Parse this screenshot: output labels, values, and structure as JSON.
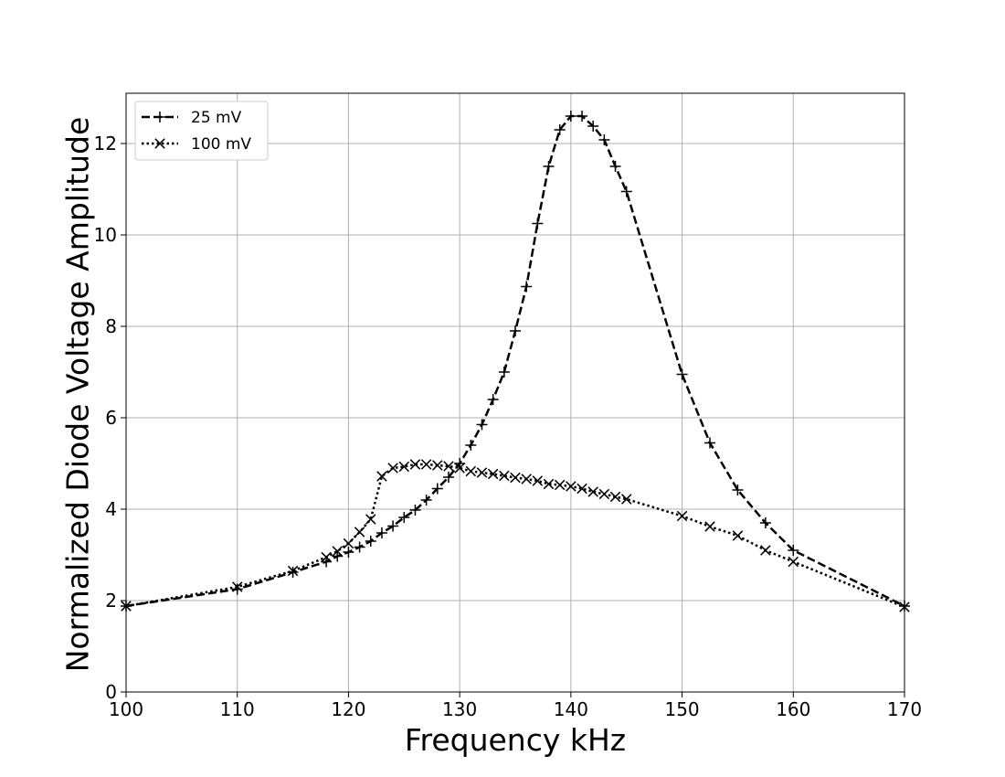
{
  "chart_data": {
    "type": "line",
    "title": "",
    "xlabel": "Frequency kHz",
    "ylabel": "Normalized Diode Voltage Amplitude",
    "xlim": [
      100,
      170
    ],
    "ylim": [
      0,
      13.1
    ],
    "xticks": [
      100,
      110,
      120,
      130,
      140,
      150,
      160,
      170
    ],
    "yticks": [
      0,
      2,
      4,
      6,
      8,
      10,
      12
    ],
    "grid": true,
    "legend_position": "upper-left",
    "series": [
      {
        "name": "25 mV",
        "line_style": "dashed",
        "marker": "plus",
        "color": "#000000",
        "x": [
          100,
          110,
          115,
          118,
          119,
          120,
          121,
          122,
          123,
          124,
          125,
          126,
          127,
          128,
          129,
          130,
          131,
          132,
          133,
          134,
          135,
          136,
          137,
          138,
          139,
          140,
          141,
          142,
          143,
          144,
          145,
          150,
          152.5,
          155,
          157.5,
          160,
          170
        ],
        "y": [
          1.88,
          2.25,
          2.62,
          2.85,
          2.97,
          3.06,
          3.17,
          3.3,
          3.48,
          3.63,
          3.82,
          3.98,
          4.2,
          4.45,
          4.7,
          5.0,
          5.4,
          5.85,
          6.4,
          7.0,
          7.9,
          8.87,
          10.25,
          11.5,
          12.3,
          12.6,
          12.6,
          12.38,
          12.08,
          11.5,
          10.95,
          6.95,
          5.45,
          4.42,
          3.7,
          3.1,
          1.88
        ]
      },
      {
        "name": "100 mV",
        "line_style": "dotted",
        "marker": "x",
        "color": "#000000",
        "x": [
          100,
          110,
          115,
          118,
          119,
          120,
          121,
          122,
          123,
          124,
          125,
          126,
          127,
          128,
          129,
          130,
          131,
          132,
          133,
          134,
          135,
          136,
          137,
          138,
          139,
          140,
          141,
          142,
          143,
          144,
          145,
          150,
          152.5,
          155,
          157.5,
          160,
          170
        ],
        "y": [
          1.88,
          2.3,
          2.65,
          2.95,
          3.08,
          3.25,
          3.5,
          3.78,
          4.72,
          4.9,
          4.93,
          4.98,
          4.98,
          4.96,
          4.94,
          4.9,
          4.83,
          4.8,
          4.77,
          4.73,
          4.69,
          4.66,
          4.62,
          4.55,
          4.53,
          4.5,
          4.45,
          4.38,
          4.33,
          4.27,
          4.22,
          3.85,
          3.62,
          3.42,
          3.1,
          2.85,
          1.86
        ]
      }
    ]
  }
}
